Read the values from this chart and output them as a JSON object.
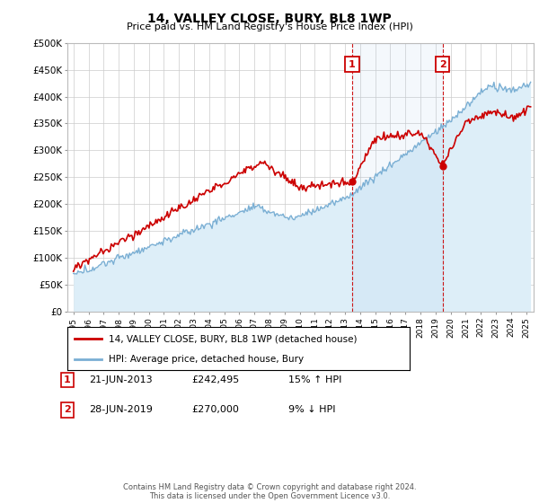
{
  "title": "14, VALLEY CLOSE, BURY, BL8 1WP",
  "subtitle": "Price paid vs. HM Land Registry's House Price Index (HPI)",
  "ylim": [
    0,
    500000
  ],
  "yticks": [
    0,
    50000,
    100000,
    150000,
    200000,
    250000,
    300000,
    350000,
    400000,
    450000,
    500000
  ],
  "legend_line1": "14, VALLEY CLOSE, BURY, BL8 1WP (detached house)",
  "legend_line2": "HPI: Average price, detached house, Bury",
  "red_color": "#cc0000",
  "blue_color": "#7aafd4",
  "blue_fill": "#ddeef8",
  "marker1_date": "21-JUN-2013",
  "marker1_price": "£242,495",
  "marker1_hpi": "15% ↑ HPI",
  "marker2_date": "28-JUN-2019",
  "marker2_price": "£270,000",
  "marker2_hpi": "9% ↓ HPI",
  "vline1_x": 2013.47,
  "vline2_x": 2019.47,
  "footer": "Contains HM Land Registry data © Crown copyright and database right 2024.\nThis data is licensed under the Open Government Licence v3.0.",
  "background_color": "#ffffff",
  "grid_color": "#cccccc",
  "xlim_min": 1994.6,
  "xlim_max": 2025.5
}
